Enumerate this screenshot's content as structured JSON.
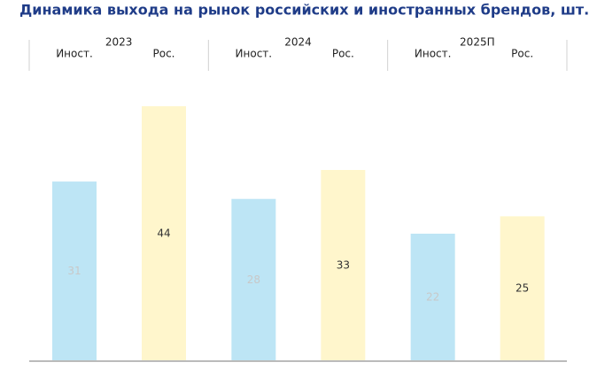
{
  "chart_data": {
    "type": "bar",
    "title": "Динамика выхода на рынок российских и иностранных брендов, шт.",
    "categories": [
      "2023",
      "2024",
      "2025П"
    ],
    "series": [
      {
        "name": "Иност.",
        "color": "#bde5f5",
        "label_color": "#c8c8c8",
        "values": [
          31,
          28,
          22
        ]
      },
      {
        "name": "Рос.",
        "color": "#fff6cc",
        "label_color": "#333333",
        "values": [
          44,
          33,
          25
        ]
      }
    ]
  }
}
